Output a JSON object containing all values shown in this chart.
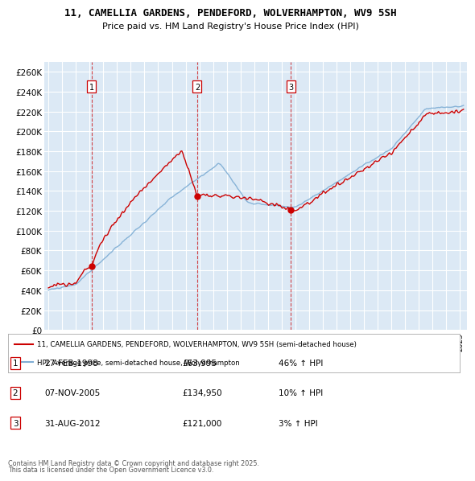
{
  "title1": "11, CAMELLIA GARDENS, PENDEFORD, WOLVERHAMPTON, WV9 5SH",
  "title2": "Price paid vs. HM Land Registry's House Price Index (HPI)",
  "plot_bg_color": "#dce9f5",
  "grid_color": "#ffffff",
  "ylabel_ticks": [
    "£0",
    "£20K",
    "£40K",
    "£60K",
    "£80K",
    "£100K",
    "£120K",
    "£140K",
    "£160K",
    "£180K",
    "£200K",
    "£220K",
    "£240K",
    "£260K"
  ],
  "ytick_values": [
    0,
    20000,
    40000,
    60000,
    80000,
    100000,
    120000,
    140000,
    160000,
    180000,
    200000,
    220000,
    240000,
    260000
  ],
  "sale1_date": "27-FEB-1998",
  "sale1_price": 63995,
  "sale1_year": 1998.15,
  "sale1_pct": "46%",
  "sale2_date": "07-NOV-2005",
  "sale2_price": 134950,
  "sale2_year": 2005.84,
  "sale2_pct": "10%",
  "sale3_date": "31-AUG-2012",
  "sale3_price": 121000,
  "sale3_year": 2012.67,
  "sale3_pct": "3%",
  "legend_line1": "11, CAMELLIA GARDENS, PENDEFORD, WOLVERHAMPTON, WV9 5SH (semi-detached house)",
  "legend_line2": "HPI: Average price, semi-detached house, Wolverhampton",
  "footer1": "Contains HM Land Registry data © Crown copyright and database right 2025.",
  "footer2": "This data is licensed under the Open Government Licence v3.0.",
  "price_color": "#cc0000",
  "hpi_color": "#7eadd4",
  "vline_color": "#cc0000",
  "dot_color": "#cc0000"
}
